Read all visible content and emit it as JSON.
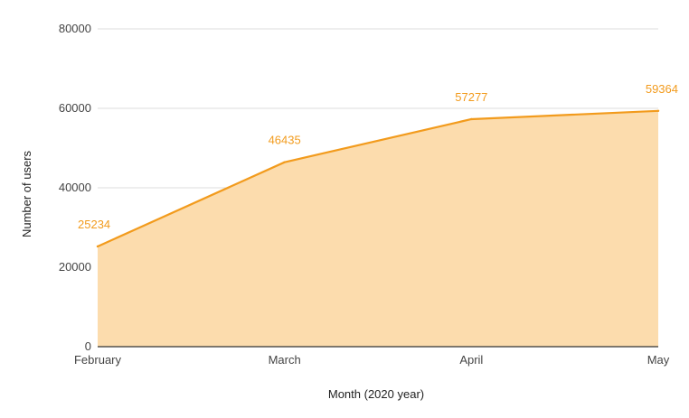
{
  "chart_data": {
    "type": "area",
    "title": "",
    "xlabel": "Month (2020 year)",
    "ylabel": "Number of users",
    "categories": [
      "February",
      "March",
      "April",
      "May"
    ],
    "series": [
      {
        "values": [
          25234,
          46435,
          57277,
          59364
        ]
      }
    ],
    "data_labels": [
      "25234",
      "46435",
      "57277",
      "59364"
    ],
    "ylim": [
      0,
      80000
    ],
    "yticks": [
      "0",
      "20000",
      "40000",
      "60000",
      "80000"
    ],
    "grid": true,
    "legend": "none",
    "colors": {
      "line": "#f29b1d",
      "fill": "#fcdcad",
      "label": "#f29b1d"
    }
  }
}
